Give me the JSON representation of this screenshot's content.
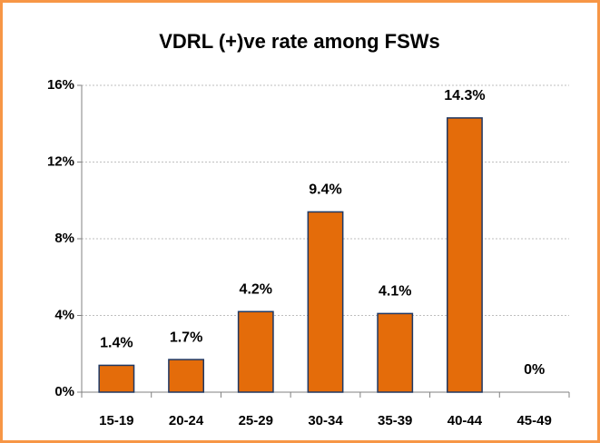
{
  "chart_data": {
    "type": "bar",
    "title": "VDRL (+)ve rate among FSWs",
    "categories": [
      "15-19",
      "20-24",
      "25-29",
      "30-34",
      "35-39",
      "40-44",
      "45-49"
    ],
    "values": [
      1.4,
      1.7,
      4.2,
      9.4,
      4.1,
      14.3,
      0
    ],
    "value_labels": [
      "1.4%",
      "1.7%",
      "4.2%",
      "9.4%",
      "4.1%",
      "14.3%",
      "0%"
    ],
    "color": "#e46c0a",
    "ylim": [
      0,
      16
    ],
    "yticks": [
      {
        "value": 0,
        "label": "0%"
      },
      {
        "value": 4,
        "label": "4%"
      },
      {
        "value": 8,
        "label": "8%"
      },
      {
        "value": 12,
        "label": "12%"
      },
      {
        "value": 16,
        "label": "16%"
      }
    ],
    "grid": true
  }
}
